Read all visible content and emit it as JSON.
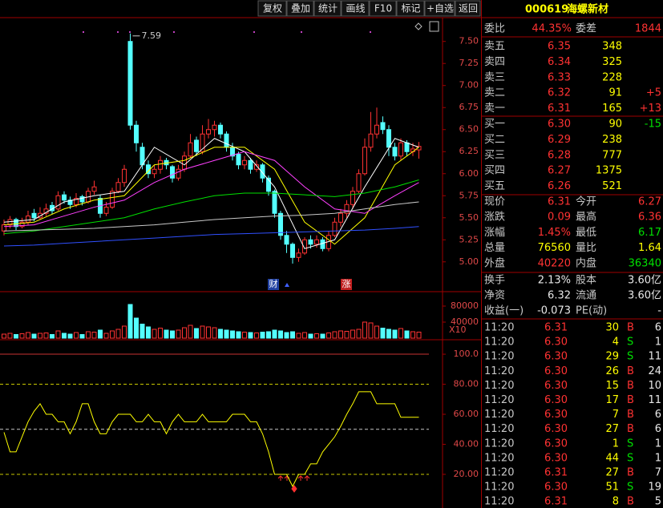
{
  "toolbar": [
    "复权",
    "叠加",
    "统计",
    "画线",
    "F10",
    "标记",
    "+自选",
    "返回"
  ],
  "price_chart": {
    "type": "candlestick",
    "ylim": [
      4.68,
      7.77
    ],
    "yticks": [
      {
        "value": 7.5,
        "label": "7.50"
      },
      7.25,
      {
        "value": 7,
        "label": "7.00"
      },
      6.75,
      {
        "value": 6.5,
        "label": "6.50"
      },
      6.25,
      {
        "value": 6,
        "label": "6.00"
      },
      5.75,
      {
        "value": 5.5,
        "label": "5.50"
      },
      5.25,
      {
        "value": 5,
        "label": "5.00"
      }
    ],
    "up_color": "#ff3232",
    "down_color": "#54ffff",
    "max_label": "7.59",
    "markers": [
      "财",
      "涨"
    ],
    "candles": [
      [
        5.35,
        5.48,
        5.3,
        5.42
      ],
      [
        5.42,
        5.52,
        5.38,
        5.48
      ],
      [
        5.48,
        5.5,
        5.36,
        5.4
      ],
      [
        5.4,
        5.5,
        5.38,
        5.45
      ],
      [
        5.45,
        5.58,
        5.42,
        5.52
      ],
      [
        5.55,
        5.6,
        5.46,
        5.5
      ],
      [
        5.5,
        5.62,
        5.48,
        5.55
      ],
      [
        5.55,
        5.66,
        5.52,
        5.6
      ],
      [
        5.64,
        5.68,
        5.54,
        5.58
      ],
      [
        5.6,
        5.8,
        5.58,
        5.75
      ],
      [
        5.76,
        5.8,
        5.66,
        5.7
      ],
      [
        5.7,
        5.74,
        5.6,
        5.65
      ],
      [
        5.65,
        5.78,
        5.62,
        5.72
      ],
      [
        5.74,
        5.76,
        5.64,
        5.68
      ],
      [
        5.68,
        5.84,
        5.66,
        5.8
      ],
      [
        5.8,
        5.92,
        5.76,
        5.85
      ],
      [
        5.72,
        5.76,
        5.5,
        5.55
      ],
      [
        5.55,
        5.68,
        5.52,
        5.62
      ],
      [
        5.62,
        5.84,
        5.6,
        5.8
      ],
      [
        5.8,
        5.95,
        5.78,
        5.9
      ],
      [
        5.9,
        6.1,
        5.85,
        6.05
      ],
      [
        7.5,
        7.59,
        6.5,
        6.55
      ],
      [
        6.55,
        6.6,
        6.25,
        6.35
      ],
      [
        6.3,
        6.35,
        6.05,
        6.1
      ],
      [
        6.1,
        6.15,
        5.95,
        6.0
      ],
      [
        6.0,
        6.1,
        5.95,
        6.05
      ],
      [
        6.05,
        6.2,
        6.0,
        6.15
      ],
      [
        6.15,
        6.18,
        6.05,
        6.1
      ],
      [
        6.08,
        6.1,
        5.9,
        5.95
      ],
      [
        5.95,
        6.1,
        5.92,
        6.05
      ],
      [
        6.05,
        6.25,
        6.02,
        6.2
      ],
      [
        6.2,
        6.45,
        6.18,
        6.35
      ],
      [
        6.38,
        6.42,
        6.2,
        6.25
      ],
      [
        6.25,
        6.55,
        6.22,
        6.45
      ],
      [
        6.45,
        6.62,
        6.4,
        6.5
      ],
      [
        6.5,
        6.6,
        6.42,
        6.55
      ],
      [
        6.55,
        6.58,
        6.4,
        6.45
      ],
      [
        6.45,
        6.48,
        6.25,
        6.3
      ],
      [
        6.3,
        6.35,
        6.15,
        6.2
      ],
      [
        6.22,
        6.25,
        6.05,
        6.1
      ],
      [
        6.1,
        6.2,
        6.05,
        6.15
      ],
      [
        6.15,
        6.18,
        6.0,
        6.05
      ],
      [
        6.05,
        6.15,
        6.02,
        6.1
      ],
      [
        6.1,
        6.12,
        5.9,
        5.95
      ],
      [
        5.95,
        5.98,
        5.75,
        5.8
      ],
      [
        5.8,
        5.82,
        5.5,
        5.55
      ],
      [
        5.55,
        5.58,
        5.25,
        5.3
      ],
      [
        5.3,
        5.35,
        5.1,
        5.2
      ],
      [
        5.2,
        5.22,
        4.98,
        5.05
      ],
      [
        5.05,
        5.15,
        5.0,
        5.1
      ],
      [
        5.1,
        5.28,
        5.08,
        5.25
      ],
      [
        5.25,
        5.3,
        5.15,
        5.2
      ],
      [
        5.2,
        5.3,
        5.16,
        5.25
      ],
      [
        5.25,
        5.28,
        5.12,
        5.15
      ],
      [
        5.15,
        5.35,
        5.12,
        5.3
      ],
      [
        5.3,
        5.5,
        5.28,
        5.45
      ],
      [
        5.45,
        5.6,
        5.4,
        5.55
      ],
      [
        5.55,
        5.7,
        5.5,
        5.65
      ],
      [
        5.65,
        5.85,
        5.6,
        5.8
      ],
      [
        5.8,
        6.05,
        5.78,
        6.0
      ],
      [
        6.0,
        6.4,
        5.98,
        6.3
      ],
      [
        6.3,
        6.7,
        6.25,
        6.45
      ],
      [
        6.45,
        6.75,
        6.4,
        6.55
      ],
      [
        6.58,
        6.65,
        6.45,
        6.5
      ],
      [
        6.5,
        6.55,
        6.2,
        6.3
      ],
      [
        6.3,
        6.35,
        6.15,
        6.2
      ],
      [
        6.2,
        6.4,
        6.15,
        6.35
      ],
      [
        6.35,
        6.38,
        6.2,
        6.25
      ],
      [
        6.25,
        6.35,
        6.2,
        6.28
      ],
      [
        6.27,
        6.36,
        6.17,
        6.31
      ]
    ],
    "ma_x": [
      0,
      5,
      10,
      15,
      20,
      25,
      30,
      35,
      40,
      45,
      50,
      55,
      60,
      65,
      69
    ],
    "ma": [
      {
        "color": "#ffffff",
        "values": [
          5.45,
          5.48,
          5.68,
          5.75,
          5.8,
          6.3,
          6.1,
          6.4,
          6.25,
          5.85,
          5.15,
          5.25,
          5.85,
          6.4,
          6.3
        ]
      },
      {
        "color": "#ffff00",
        "values": [
          5.42,
          5.45,
          5.6,
          5.7,
          5.75,
          6.1,
          6.15,
          6.3,
          6.3,
          6.05,
          5.45,
          5.2,
          5.5,
          6.1,
          6.3
        ]
      },
      {
        "color": "#ff40ff",
        "values": [
          5.4,
          5.42,
          5.52,
          5.62,
          5.7,
          5.9,
          6.05,
          6.15,
          6.25,
          6.15,
          5.85,
          5.6,
          5.55,
          5.75,
          5.9
        ]
      },
      {
        "color": "#00e000",
        "values": [
          5.32,
          5.35,
          5.4,
          5.45,
          5.5,
          5.6,
          5.68,
          5.75,
          5.78,
          5.78,
          5.76,
          5.74,
          5.78,
          5.85,
          5.93
        ]
      },
      {
        "color": "#c8c8c8",
        "values": [
          5.35,
          5.36,
          5.37,
          5.38,
          5.4,
          5.42,
          5.45,
          5.48,
          5.5,
          5.52,
          5.53,
          5.55,
          5.6,
          5.65,
          5.68
        ]
      },
      {
        "color": "#3050ff",
        "values": [
          5.18,
          5.19,
          5.21,
          5.23,
          5.25,
          5.27,
          5.29,
          5.31,
          5.32,
          5.33,
          5.34,
          5.35,
          5.36,
          5.38,
          5.4
        ]
      }
    ]
  },
  "volume_chart": {
    "type": "bar",
    "ylim": [
      0,
      112000
    ],
    "yticks": [
      80000,
      40000
    ],
    "unit_label": "X10",
    "values": [
      10000,
      12000,
      9000,
      11000,
      14000,
      10000,
      12000,
      13000,
      9000,
      18000,
      12000,
      10000,
      14000,
      9000,
      16000,
      15000,
      20000,
      12000,
      18000,
      22000,
      30000,
      84000,
      50000,
      35000,
      28000,
      22000,
      25000,
      20000,
      18000,
      20000,
      26000,
      32000,
      24000,
      30000,
      28000,
      26000,
      22000,
      20000,
      18000,
      16000,
      15000,
      14000,
      13000,
      15000,
      16000,
      20000,
      18000,
      14000,
      16000,
      12000,
      14000,
      10000,
      11000,
      10000,
      13000,
      16000,
      18000,
      17000,
      20000,
      22000,
      40000,
      38000,
      30000,
      25000,
      22000,
      20000,
      24000,
      18000,
      16000,
      15000
    ]
  },
  "indicator_chart": {
    "type": "line",
    "ylim": [
      -2.4,
      107.5
    ],
    "yticks": [
      {
        "value": 100,
        "label": "100.0"
      },
      {
        "value": 80,
        "label": "80.00"
      },
      {
        "value": 60,
        "label": "60.00"
      },
      {
        "value": 40,
        "label": "40.00"
      },
      {
        "value": 20,
        "label": "20.00"
      }
    ],
    "color": "#ffff00",
    "ref_lines": [
      {
        "value": 100,
        "color": "#c83232",
        "dashed": false
      },
      {
        "value": 80,
        "color": "#c8c800",
        "dashed": true
      },
      {
        "value": 50,
        "color": "#c8c8c8",
        "dashed": true
      },
      {
        "value": 20,
        "color": "#c8c800",
        "dashed": true
      }
    ],
    "values": [
      48,
      35,
      35,
      45,
      55,
      62,
      67,
      60,
      60,
      55,
      55,
      47,
      55,
      67,
      67,
      55,
      47,
      47,
      55,
      60,
      60,
      60,
      55,
      55,
      60,
      55,
      55,
      47,
      55,
      60,
      55,
      55,
      55,
      60,
      55,
      55,
      55,
      55,
      60,
      60,
      60,
      55,
      55,
      47,
      35,
      20,
      20,
      20,
      12,
      20,
      20,
      27,
      27,
      35,
      40,
      45,
      52,
      60,
      67,
      75,
      75,
      75,
      67,
      67,
      67,
      67,
      58,
      58,
      58,
      58
    ]
  },
  "quote": {
    "code": "000619",
    "name": "海螺新材",
    "summary": [
      "委比",
      "44.35%",
      "委差",
      "1844"
    ],
    "asks": [
      [
        "卖五",
        "6.35",
        "348"
      ],
      [
        "卖四",
        "6.34",
        "325"
      ],
      [
        "卖三",
        "6.33",
        "228"
      ],
      [
        "卖二",
        "6.32",
        "91",
        "+5"
      ],
      [
        "卖一",
        "6.31",
        "165",
        "+13"
      ]
    ],
    "bids": [
      [
        "买一",
        "6.30",
        "90",
        "-15"
      ],
      [
        "买二",
        "6.29",
        "238"
      ],
      [
        "买三",
        "6.28",
        "777"
      ],
      [
        "买四",
        "6.27",
        "1375"
      ],
      [
        "买五",
        "6.26",
        "521"
      ]
    ],
    "stats": [
      [
        "现价",
        "6.31",
        "今开",
        "6.27"
      ],
      [
        "涨跌",
        "0.09",
        "最高",
        "6.36"
      ],
      [
        "涨幅",
        "1.45%",
        "最低",
        "6.17"
      ],
      [
        "总量",
        "76560",
        "量比",
        "1.64"
      ],
      [
        "外盘",
        "40220",
        "内盘",
        "36340"
      ]
    ],
    "stats_colors": [
      [
        "#ff3232",
        "#ff3232"
      ],
      [
        "#ff3232",
        "#ff3232"
      ],
      [
        "#ff3232",
        "#00e000"
      ],
      [
        "#ffff00",
        "#ffff00"
      ],
      [
        "#ff3232",
        "#00e000"
      ]
    ],
    "fund": [
      [
        "换手",
        "2.13%",
        "股本",
        "3.60亿"
      ],
      [
        "净资",
        "6.32",
        "流通",
        "3.60亿"
      ],
      [
        "收益(一)",
        "-0.073",
        "PE(动)",
        "-"
      ]
    ]
  },
  "trades": [
    [
      "11:20",
      "6.31",
      "30",
      "B",
      "6"
    ],
    [
      "11:20",
      "6.30",
      "4",
      "S",
      "1"
    ],
    [
      "11:20",
      "6.30",
      "29",
      "S",
      "11"
    ],
    [
      "11:20",
      "6.30",
      "26",
      "B",
      "24"
    ],
    [
      "11:20",
      "6.30",
      "15",
      "B",
      "10"
    ],
    [
      "11:20",
      "6.30",
      "17",
      "B",
      "11"
    ],
    [
      "11:20",
      "6.30",
      "7",
      "B",
      "6"
    ],
    [
      "11:20",
      "6.30",
      "27",
      "B",
      "6"
    ],
    [
      "11:20",
      "6.30",
      "1",
      "S",
      "1"
    ],
    [
      "11:20",
      "6.30",
      "44",
      "S",
      "1"
    ],
    [
      "11:20",
      "6.31",
      "27",
      "B",
      "7"
    ],
    [
      "11:20",
      "6.30",
      "51",
      "S",
      "19"
    ],
    [
      "11:20",
      "6.31",
      "8",
      "B",
      "5"
    ]
  ]
}
